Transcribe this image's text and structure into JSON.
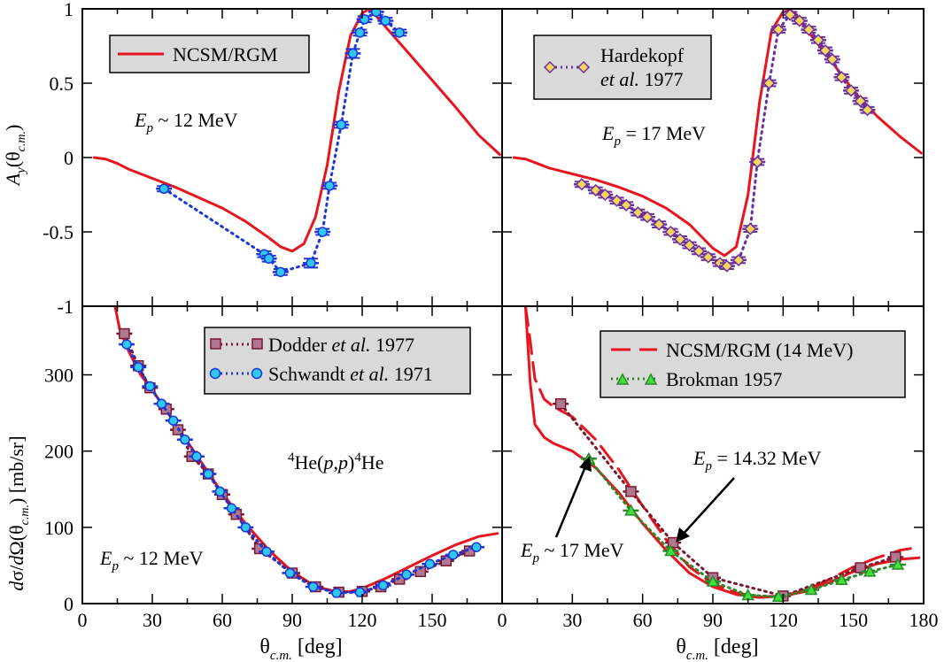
{
  "colors": {
    "theory": "#e8141e",
    "blue": "#1d36d9",
    "cyan": "#2fc8f5",
    "purple": "#6a2fa0",
    "gold": "#f5d55a",
    "mauve": "#b07890",
    "darkred": "#7a1830",
    "green": "#2a8a2a",
    "lightgreen": "#3ee03a"
  },
  "axis_labels": {
    "left_top_ylabel": "A_y(θ_c.m.)",
    "left_bottom_ylabel": "dσ/dΩ(θ_c.m.) [mb/sr]",
    "xlabel_left": "θ_c.m. [deg]",
    "xlabel_right": "θ_c.m. [deg]"
  },
  "chart_data": [
    {
      "id": "top-left",
      "type": "line",
      "title": "",
      "annotation": "E_p ~ 12 MeV",
      "xlabel": "",
      "ylabel": "A_y(θ_c.m.)",
      "xlim": [
        0,
        180
      ],
      "ylim": [
        -1,
        1
      ],
      "yticks": [
        -1,
        -0.5,
        0,
        0.5,
        1
      ],
      "ytick_labels": [
        "-1",
        "-0.5",
        "0",
        "0.5",
        "1"
      ],
      "legend": [
        {
          "label": "NCSM/RGM",
          "style": "solid-red"
        }
      ],
      "series": [
        {
          "name": "NCSM/RGM",
          "style": "solid-red",
          "x": [
            5,
            10,
            15,
            20,
            30,
            40,
            50,
            60,
            70,
            80,
            85,
            90,
            95,
            100,
            105,
            110,
            115,
            120,
            123,
            125,
            130,
            140,
            150,
            160,
            170,
            179
          ],
          "y": [
            0,
            -0.01,
            -0.04,
            -0.08,
            -0.14,
            -0.2,
            -0.27,
            -0.34,
            -0.43,
            -0.54,
            -0.6,
            -0.63,
            -0.58,
            -0.4,
            -0.05,
            0.45,
            0.82,
            0.97,
            1.0,
            0.97,
            0.88,
            0.7,
            0.52,
            0.34,
            0.15,
            0.02
          ]
        },
        {
          "name": "data-12MeV",
          "style": "dotted-blue-cyan-circles",
          "x": [
            35,
            78,
            80,
            85,
            98,
            103,
            106,
            111,
            116,
            119,
            121,
            126,
            130,
            136
          ],
          "y": [
            -0.21,
            -0.65,
            -0.68,
            -0.77,
            -0.71,
            -0.5,
            -0.19,
            0.22,
            0.7,
            0.84,
            0.93,
            0.98,
            0.92,
            0.84
          ],
          "yerr": [
            0.01,
            0.02,
            0.02,
            0.02,
            0.03,
            0.02,
            0.02,
            0.02,
            0.03,
            0.02,
            0.02,
            0.02,
            0.02,
            0.02
          ]
        }
      ]
    },
    {
      "id": "top-right",
      "type": "line",
      "annotation": "E_p = 17 MeV",
      "xlim": [
        0,
        180
      ],
      "ylim": [
        -1,
        1
      ],
      "legend": [
        {
          "label": "Hardekopf",
          "label2": "et al. 1977",
          "style": "dotted-purple-diamonds"
        }
      ],
      "series": [
        {
          "name": "NCSM/RGM",
          "style": "solid-red",
          "x": [
            5,
            10,
            15,
            20,
            30,
            40,
            50,
            60,
            70,
            80,
            85,
            90,
            95,
            100,
            105,
            110,
            115,
            120,
            123,
            125,
            130,
            140,
            150,
            160,
            170,
            179
          ],
          "y": [
            0,
            -0.01,
            -0.04,
            -0.07,
            -0.11,
            -0.15,
            -0.2,
            -0.26,
            -0.34,
            -0.45,
            -0.53,
            -0.61,
            -0.66,
            -0.6,
            -0.25,
            0.38,
            0.85,
            0.98,
            0.99,
            0.97,
            0.86,
            0.66,
            0.45,
            0.28,
            0.14,
            0.03
          ]
        },
        {
          "name": "Hardekopf et al. 1977",
          "style": "dotted-purple-diamonds",
          "x": [
            34,
            40,
            44,
            49,
            53,
            58,
            62,
            67,
            72,
            76,
            80,
            84,
            88,
            93,
            96,
            101,
            106,
            109,
            114,
            118,
            123,
            127,
            131,
            135,
            138,
            141,
            145,
            149,
            153,
            156
          ],
          "y": [
            -0.18,
            -0.22,
            -0.25,
            -0.29,
            -0.32,
            -0.37,
            -0.4,
            -0.45,
            -0.5,
            -0.55,
            -0.59,
            -0.63,
            -0.67,
            -0.71,
            -0.73,
            -0.69,
            -0.48,
            -0.03,
            0.5,
            0.86,
            0.96,
            0.92,
            0.86,
            0.79,
            0.72,
            0.66,
            0.54,
            0.45,
            0.38,
            0.32
          ],
          "yerr": [
            0.01,
            0.02,
            0.02,
            0.02,
            0.02,
            0.02,
            0.02,
            0.02,
            0.02,
            0.02,
            0.02,
            0.02,
            0.02,
            0.02,
            0.02,
            0.02,
            0.02,
            0.02,
            0.02,
            0.02,
            0.02,
            0.02,
            0.02,
            0.02,
            0.02,
            0.02,
            0.02,
            0.02,
            0.02,
            0.02
          ]
        }
      ]
    },
    {
      "id": "bottom-left",
      "type": "scatter",
      "annotation": "E_p ~ 12 MeV",
      "reaction": "4He(p,p)4He",
      "xlim": [
        0,
        180
      ],
      "ylim": [
        0,
        390
      ],
      "xticks": [
        0,
        30,
        60,
        90,
        120,
        150
      ],
      "xtick_labels": [
        "0",
        "30",
        "60",
        "90",
        "120",
        "150"
      ],
      "yticks": [
        0,
        100,
        200,
        300
      ],
      "ytick_labels": [
        "0",
        "100",
        "200",
        "300"
      ],
      "legend": [
        {
          "label": "Dodder",
          "italic": "et al.",
          "label2": "1977",
          "style": "dotted-darkred-squares"
        },
        {
          "label": "Schwandt",
          "italic": "et al.",
          "label2": "1971",
          "style": "dotted-blue-circles"
        }
      ],
      "series": [
        {
          "name": "NCSM/RGM",
          "style": "solid-red",
          "x": [
            14,
            16,
            20,
            25,
            30,
            40,
            50,
            60,
            70,
            80,
            90,
            100,
            110,
            115,
            120,
            130,
            140,
            150,
            160,
            170,
            178
          ],
          "y": [
            390,
            360,
            330,
            300,
            280,
            235,
            190,
            145,
            105,
            70,
            42,
            22,
            15,
            16,
            20,
            33,
            48,
            63,
            77,
            88,
            92
          ]
        },
        {
          "name": "Dodder et al. 1977",
          "style": "dotted-darkred-squares",
          "x": [
            18,
            24,
            29,
            36,
            41,
            47,
            54,
            60,
            66,
            76,
            90,
            100,
            110,
            120,
            128,
            136,
            145,
            156,
            166
          ],
          "y": [
            354,
            312,
            283,
            255,
            228,
            193,
            170,
            143,
            117,
            72,
            40,
            22,
            15,
            16,
            22,
            32,
            42,
            56,
            69
          ]
        },
        {
          "name": "Schwandt et al. 1971",
          "style": "dotted-blue-circles",
          "x": [
            19,
            24,
            29,
            34,
            39,
            44,
            49,
            54,
            59,
            64,
            70,
            79,
            89,
            99,
            109,
            119,
            129,
            139,
            149,
            159,
            169
          ],
          "y": [
            340,
            310,
            285,
            262,
            240,
            215,
            193,
            170,
            147,
            125,
            100,
            68,
            40,
            22,
            14,
            15,
            24,
            38,
            52,
            64,
            74
          ]
        }
      ]
    },
    {
      "id": "bottom-right",
      "type": "scatter",
      "annotations": [
        "E_p = 14.32 MeV",
        "E_p ~ 17 MeV"
      ],
      "xlim": [
        0,
        180
      ],
      "ylim": [
        0,
        390
      ],
      "xticks": [
        0,
        30,
        60,
        90,
        120,
        150,
        180
      ],
      "xtick_labels": [
        "0",
        "30",
        "60",
        "90",
        "120",
        "150",
        "180"
      ],
      "legend": [
        {
          "label": "NCSM/RGM (14 MeV)",
          "style": "dashed-red"
        },
        {
          "label": "Brokman 1957",
          "style": "dotted-green-triangles"
        }
      ],
      "series": [
        {
          "name": "NCSM/RGM (17 MeV)",
          "style": "solid-red",
          "x": [
            10,
            12,
            14,
            18,
            22,
            30,
            40,
            50,
            60,
            70,
            80,
            90,
            100,
            110,
            120,
            130,
            140,
            150,
            160,
            170,
            178
          ],
          "y": [
            390,
            290,
            235,
            218,
            210,
            200,
            178,
            145,
            105,
            70,
            40,
            22,
            12,
            8,
            10,
            16,
            28,
            42,
            52,
            58,
            60
          ]
        },
        {
          "name": "NCSM/RGM (14 MeV)",
          "style": "dashed-red",
          "x": [
            10,
            12,
            14,
            18,
            22,
            30,
            40,
            50,
            60,
            70,
            80,
            90,
            100,
            110,
            120,
            130,
            140,
            150,
            160,
            170,
            178
          ],
          "y": [
            390,
            345,
            295,
            268,
            258,
            245,
            215,
            175,
            128,
            84,
            48,
            26,
            14,
            9,
            10,
            18,
            32,
            48,
            60,
            70,
            74
          ]
        },
        {
          "name": "data-14.32MeV",
          "style": "dotted-darkred-squares",
          "x": [
            25,
            55,
            73,
            90,
            120,
            153,
            168
          ],
          "y": [
            262,
            147,
            80,
            34,
            10,
            47,
            61
          ]
        },
        {
          "name": "Brokman 1957",
          "style": "dotted-green-triangles",
          "x": [
            37,
            55,
            72,
            90,
            105,
            118,
            132,
            145,
            157,
            169
          ],
          "y": [
            190,
            122,
            69,
            29,
            11,
            9,
            18,
            31,
            42,
            51
          ]
        }
      ]
    }
  ]
}
